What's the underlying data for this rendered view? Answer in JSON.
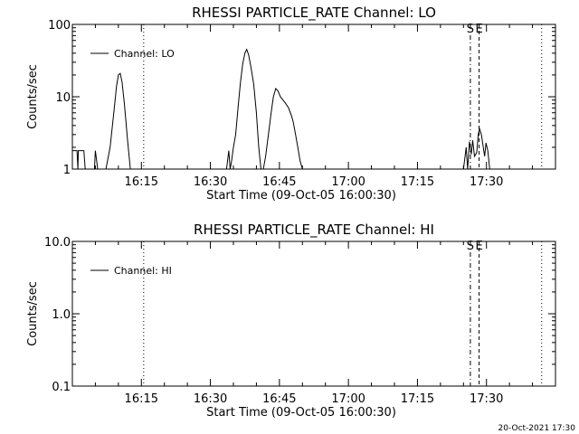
{
  "timestamp": "20-Oct-2021 17:30",
  "colors": {
    "background": "#ffffff",
    "foreground": "#000000"
  },
  "chart_data": [
    {
      "type": "line",
      "title": "RHESSI PARTICLE_RATE Channel: LO",
      "xlabel": "Start Time (09-Oct-05 16:00:30)",
      "ylabel": "Counts/sec",
      "yscale": "log",
      "ylim": [
        1,
        100
      ],
      "xlim_minutes": [
        0,
        105
      ],
      "yticks": [
        1,
        10,
        100
      ],
      "yticklabels": [
        "1",
        "10",
        "100"
      ],
      "xticks": [
        15,
        30,
        45,
        60,
        75,
        90
      ],
      "xticklabels": [
        "16:15",
        "16:30",
        "16:45",
        "17:00",
        "17:15",
        "17:30"
      ],
      "legend": {
        "label": "Channel: LO",
        "placement": "top-left"
      },
      "vertical_markers": [
        {
          "x": 15.5,
          "style": "dotted"
        },
        {
          "x": 86.5,
          "style": "dash-dot",
          "label": "S"
        },
        {
          "x": 88.4,
          "style": "dashed",
          "label": "E"
        },
        {
          "x": 102,
          "style": "dotted"
        }
      ],
      "series": [
        {
          "points": [
            [
              0,
              1.8
            ],
            [
              1.0,
              1.8
            ],
            [
              1.2,
              1
            ],
            [
              1.3,
              1.8
            ],
            [
              1.6,
              1.8
            ],
            [
              2.5,
              1.8
            ],
            [
              2.8,
              1
            ],
            [
              3.0,
              1
            ],
            [
              4.8,
              1
            ],
            [
              5.0,
              1.8
            ],
            [
              5.5,
              1
            ],
            [
              7.3,
              1
            ],
            [
              8.2,
              2
            ],
            [
              9.0,
              6
            ],
            [
              9.6,
              14
            ],
            [
              10.0,
              20
            ],
            [
              10.4,
              21
            ],
            [
              10.8,
              16
            ],
            [
              11.3,
              8
            ],
            [
              12.0,
              2.5
            ],
            [
              12.6,
              1
            ],
            [
              33.5,
              1
            ],
            [
              34.0,
              1.8
            ],
            [
              34.3,
              1
            ],
            [
              34.6,
              1.3
            ],
            [
              35.0,
              2
            ],
            [
              35.5,
              3
            ],
            [
              36.0,
              7
            ],
            [
              36.5,
              15
            ],
            [
              37.0,
              28
            ],
            [
              37.5,
              40
            ],
            [
              37.9,
              45
            ],
            [
              38.3,
              38
            ],
            [
              38.8,
              26
            ],
            [
              39.4,
              15
            ],
            [
              40.0,
              6
            ],
            [
              40.5,
              2
            ],
            [
              41.0,
              1
            ],
            [
              41.5,
              1
            ],
            [
              42.0,
              1.5
            ],
            [
              42.6,
              3
            ],
            [
              43.2,
              6
            ],
            [
              43.7,
              10
            ],
            [
              44.2,
              13
            ],
            [
              44.7,
              12
            ],
            [
              45.2,
              10
            ],
            [
              45.8,
              9
            ],
            [
              46.4,
              8
            ],
            [
              47.0,
              7
            ],
            [
              47.6,
              5.5
            ],
            [
              48.0,
              4.5
            ],
            [
              48.5,
              3
            ],
            [
              49.0,
              2
            ],
            [
              49.5,
              1.3
            ],
            [
              50.0,
              1
            ],
            [
              85.0,
              1
            ],
            [
              85.6,
              2
            ],
            [
              85.9,
              1
            ],
            [
              86.3,
              2.4
            ],
            [
              86.7,
              1.6
            ],
            [
              87.0,
              2.5
            ],
            [
              87.4,
              1.5
            ],
            [
              87.9,
              1.7
            ],
            [
              88.2,
              3
            ],
            [
              88.5,
              3.6
            ],
            [
              88.9,
              3
            ],
            [
              89.3,
              2
            ],
            [
              89.6,
              1.5
            ],
            [
              89.9,
              2.3
            ],
            [
              90.3,
              1.8
            ],
            [
              90.7,
              1
            ]
          ]
        }
      ]
    },
    {
      "type": "line",
      "title": "RHESSI PARTICLE_RATE Channel: HI",
      "xlabel": "Start Time (09-Oct-05 16:00:30)",
      "ylabel": "Counts/sec",
      "yscale": "log",
      "ylim": [
        0.1,
        10
      ],
      "xlim_minutes": [
        0,
        105
      ],
      "yticks": [
        0.1,
        1,
        10
      ],
      "yticklabels": [
        "0.1",
        "1.0",
        "10.0"
      ],
      "xticks": [
        15,
        30,
        45,
        60,
        75,
        90
      ],
      "xticklabels": [
        "16:15",
        "16:30",
        "16:45",
        "17:00",
        "17:15",
        "17:30"
      ],
      "legend": {
        "label": "Channel: HI",
        "placement": "top-left"
      },
      "vertical_markers": [
        {
          "x": 15.5,
          "style": "dotted"
        },
        {
          "x": 86.5,
          "style": "dash-dot",
          "label": "S"
        },
        {
          "x": 88.4,
          "style": "dashed",
          "label": "E"
        },
        {
          "x": 102,
          "style": "dotted"
        }
      ],
      "series": [
        {
          "points": []
        }
      ]
    }
  ]
}
